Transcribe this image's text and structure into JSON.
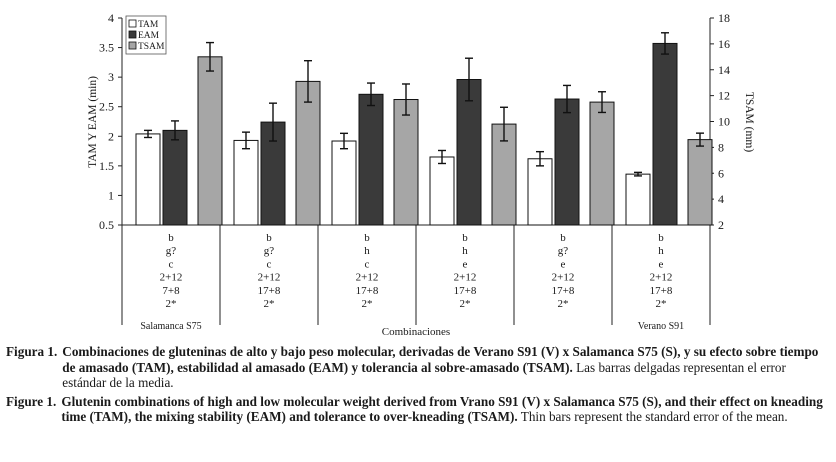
{
  "chart_data": {
    "type": "bar",
    "y_left_label": "TAM Y EAM (min)",
    "y_right_label": "TSAM (mm)",
    "xlabel": "Combinaciones",
    "ylim_left": [
      0.5,
      4
    ],
    "ylim_right": [
      2,
      18
    ],
    "yticks_left": [
      "0.5",
      "1",
      "1.5",
      "2",
      "2.5",
      "3",
      "3.5",
      "4"
    ],
    "yticks_right": [
      "2",
      "4",
      "6",
      "8",
      "10",
      "12",
      "14",
      "16",
      "18"
    ],
    "legend": {
      "position": "top-left",
      "entries": [
        "TAM",
        "EAM",
        "TSAM"
      ]
    },
    "series": [
      {
        "name": "TAM",
        "axis": "left",
        "color": "#ffffff",
        "values": [
          2.04,
          1.93,
          1.92,
          1.65,
          1.62,
          1.36
        ],
        "errors": [
          0.06,
          0.14,
          0.13,
          0.11,
          0.12,
          0.03
        ]
      },
      {
        "name": "EAM",
        "axis": "left",
        "color": "#3a3a3a",
        "values": [
          2.1,
          2.24,
          2.71,
          2.96,
          2.63,
          3.57
        ],
        "errors": [
          0.16,
          0.32,
          0.19,
          0.36,
          0.23,
          0.18
        ]
      },
      {
        "name": "TSAM",
        "axis": "right",
        "color": "#a6a6a6",
        "values": [
          15.0,
          13.1,
          11.7,
          9.8,
          11.5,
          8.6
        ],
        "errors": [
          1.1,
          1.6,
          1.2,
          1.3,
          0.8,
          0.5
        ]
      }
    ],
    "categories": [
      {
        "lines": [
          "b",
          "g?",
          "c",
          "2+12",
          "7+8",
          "2*"
        ],
        "name": "Salamanca S75"
      },
      {
        "lines": [
          "b",
          "g?",
          "c",
          "2+12",
          "17+8",
          "2*"
        ],
        "name": ""
      },
      {
        "lines": [
          "b",
          "h",
          "c",
          "2+12",
          "17+8",
          "2*"
        ],
        "name": ""
      },
      {
        "lines": [
          "b",
          "h",
          "e",
          "2+12",
          "17+8",
          "2*"
        ],
        "name": ""
      },
      {
        "lines": [
          "b",
          "g?",
          "e",
          "2+12",
          "17+8",
          "2*"
        ],
        "name": ""
      },
      {
        "lines": [
          "b",
          "h",
          "e",
          "2+12",
          "17+8",
          "2*"
        ],
        "name": "Verano S91"
      }
    ]
  },
  "captions": [
    {
      "label": "Figura 1.",
      "bold": "Combinaciones de gluteninas de alto y bajo peso molecular, derivadas de Verano S91 (V) x Salamanca S75 (S), y su efecto sobre tiempo de amasado (TAM), estabilidad al amasado (EAM) y tolerancia al sobre-amasado (TSAM).",
      "plain": " Las barras delgadas representan el error estándar de la media."
    },
    {
      "label": "Figure 1.",
      "bold": "Glutenin combinations of high and low molecular weight derived from Vrano S91 (V) x Salamanca S75 (S), and their effect on kneading time (TAM), the mixing stability (EAM) and tolerance to over-kneading (TSAM).",
      "plain": " Thin bars represent the standard error of the mean."
    }
  ]
}
